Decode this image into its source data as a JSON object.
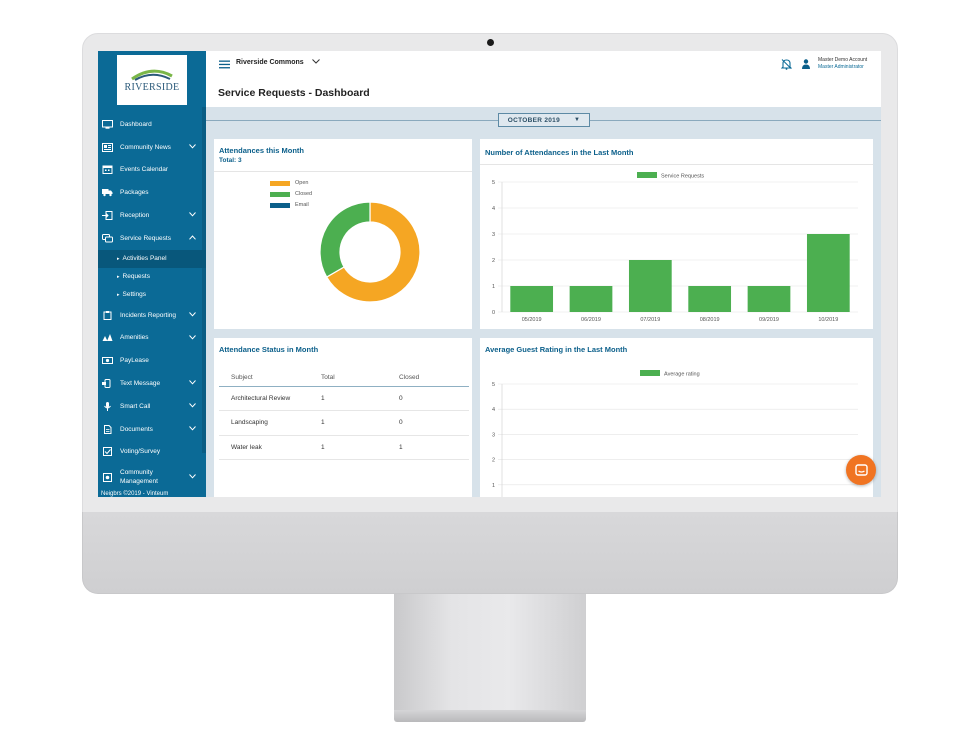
{
  "app": {
    "logo_text": "RIVERSIDE",
    "site_name": "Riverside Commons",
    "page_title": "Service Requests - Dashboard"
  },
  "account": {
    "name": "Master Demo Account",
    "role": "Master Administrator"
  },
  "sidebar": {
    "items": [
      {
        "label": "Dashboard",
        "icon": "monitor-icon",
        "chevron": false
      },
      {
        "label": "Community News",
        "icon": "newspaper-icon",
        "chevron": true
      },
      {
        "label": "Events Calendar",
        "icon": "calendar-icon",
        "chevron": false
      },
      {
        "label": "Packages",
        "icon": "truck-icon",
        "chevron": false
      },
      {
        "label": "Reception",
        "icon": "door-icon",
        "chevron": true
      },
      {
        "label": "Service Requests",
        "icon": "chat-icon",
        "chevron": true
      }
    ],
    "sub_items": [
      {
        "label": "Activities Panel"
      },
      {
        "label": "Requests"
      },
      {
        "label": "Settings"
      }
    ],
    "items2": [
      {
        "label": "Incidents Reporting",
        "icon": "clipboard-icon"
      },
      {
        "label": "Amenities",
        "icon": "amenities-icon"
      },
      {
        "label": "PayLease",
        "icon": "money-icon"
      },
      {
        "label": "Text Message",
        "icon": "phone-icon"
      },
      {
        "label": "Smart Call",
        "icon": "mic-icon"
      },
      {
        "label": "Documents",
        "icon": "document-icon"
      },
      {
        "label": "Voting/Survey",
        "icon": "checkbox-icon"
      }
    ],
    "community_line1": "Community",
    "community_line2": "Management",
    "footer": "Neigbrs ©2019 - Vinteum"
  },
  "month_selector": {
    "label": "OCTOBER 2019"
  },
  "attendances_month": {
    "title": "Attendances this Month",
    "total_label": "Total: 3",
    "chart_data": {
      "type": "pie",
      "labels": [
        "Open",
        "Closed",
        "Email"
      ],
      "values": [
        2,
        1,
        0
      ],
      "colors": [
        "#f5a623",
        "#4caf50",
        "#0b5f8a"
      ]
    }
  },
  "attendances_last_month": {
    "title": "Number of Attendances in the Last Month",
    "chart_data": {
      "type": "bar",
      "categories": [
        "05/2019",
        "06/2019",
        "07/2019",
        "08/2019",
        "09/2019",
        "10/2019"
      ],
      "series": [
        {
          "name": "Service Requests",
          "values": [
            1,
            1,
            2,
            1,
            1,
            3
          ]
        }
      ],
      "ylim": [
        0,
        5
      ],
      "yticks": [
        0,
        1,
        2,
        3,
        4,
        5
      ],
      "color": "#4caf50"
    }
  },
  "status_table": {
    "title": "Attendance Status in Month",
    "columns": [
      "Subject",
      "Total",
      "Closed"
    ],
    "rows": [
      [
        "Architectural Review",
        "1",
        "0"
      ],
      [
        "Landscaping",
        "1",
        "0"
      ],
      [
        "Water leak",
        "1",
        "1"
      ]
    ]
  },
  "guest_rating": {
    "title": "Average Guest Rating in the Last Month",
    "chart_data": {
      "type": "bar",
      "series": [
        {
          "name": "Average rating",
          "values": []
        }
      ],
      "ylim": [
        0,
        5
      ],
      "yticks_visible": [
        5,
        4,
        3,
        2,
        1
      ],
      "color": "#4caf50"
    }
  }
}
